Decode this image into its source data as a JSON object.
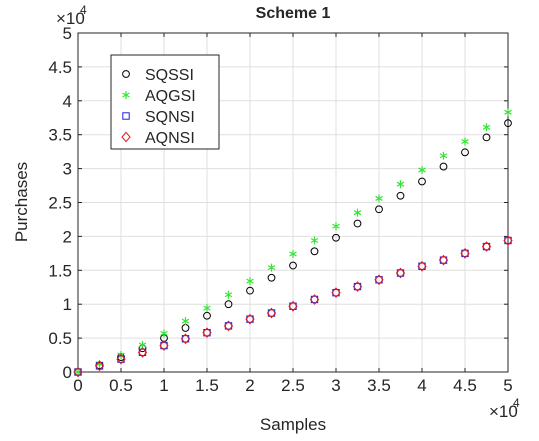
{
  "chart_data": {
    "type": "scatter",
    "title": "Scheme 1",
    "xlabel": "Samples",
    "ylabel": "Purchases",
    "xlim": [
      0,
      50000
    ],
    "ylim": [
      0,
      50000
    ],
    "x_exponent_label": "×10",
    "x_exponent_power": "4",
    "y_exponent_label": "×10",
    "y_exponent_power": "4",
    "x_ticks": [
      0,
      5000,
      10000,
      15000,
      20000,
      25000,
      30000,
      35000,
      40000,
      45000,
      50000
    ],
    "x_tick_labels": [
      "0",
      "0.5",
      "1",
      "1.5",
      "2",
      "2.5",
      "3",
      "3.5",
      "4",
      "4.5",
      "5"
    ],
    "y_ticks": [
      0,
      5000,
      10000,
      15000,
      20000,
      25000,
      30000,
      35000,
      40000,
      45000,
      50000
    ],
    "y_tick_labels": [
      "0",
      "0.5",
      "1",
      "1.5",
      "2",
      "2.5",
      "3",
      "3.5",
      "4",
      "4.5",
      "5"
    ],
    "grid": true,
    "legend_position": "top-left",
    "x": [
      0,
      2500,
      5000,
      7500,
      10000,
      12500,
      15000,
      17500,
      20000,
      22500,
      25000,
      27500,
      30000,
      32500,
      35000,
      37500,
      40000,
      42500,
      45000,
      47500,
      50000
    ],
    "series": [
      {
        "name": "SQSSI",
        "marker": "circle",
        "color": "#000000",
        "values": [
          0,
          1000,
          2200,
          3500,
          5000,
          6500,
          8300,
          10000,
          12000,
          13900,
          15700,
          17800,
          19800,
          21900,
          24000,
          26000,
          28100,
          30300,
          32400,
          34600,
          36700
        ]
      },
      {
        "name": "AQGSI",
        "marker": "asterisk",
        "color": "#33e633",
        "values": [
          0,
          1200,
          2500,
          4000,
          5700,
          7500,
          9400,
          11400,
          13400,
          15400,
          17400,
          19400,
          21500,
          23500,
          25600,
          27700,
          29800,
          31900,
          34000,
          36100,
          38300
        ]
      },
      {
        "name": "SQNSI",
        "marker": "square",
        "color": "#1f1fd9",
        "values": [
          0,
          900,
          1900,
          2900,
          3900,
          4900,
          5800,
          6800,
          7800,
          8700,
          9700,
          10700,
          11700,
          12600,
          13600,
          14600,
          15600,
          16500,
          17500,
          18500,
          19400
        ]
      },
      {
        "name": "AQNSI",
        "marker": "diamond",
        "color": "#e61a1a",
        "values": [
          0,
          900,
          1900,
          2900,
          3900,
          4900,
          5800,
          6800,
          7800,
          8700,
          9700,
          10700,
          11700,
          12600,
          13600,
          14600,
          15600,
          16500,
          17500,
          18500,
          19400
        ]
      }
    ]
  }
}
